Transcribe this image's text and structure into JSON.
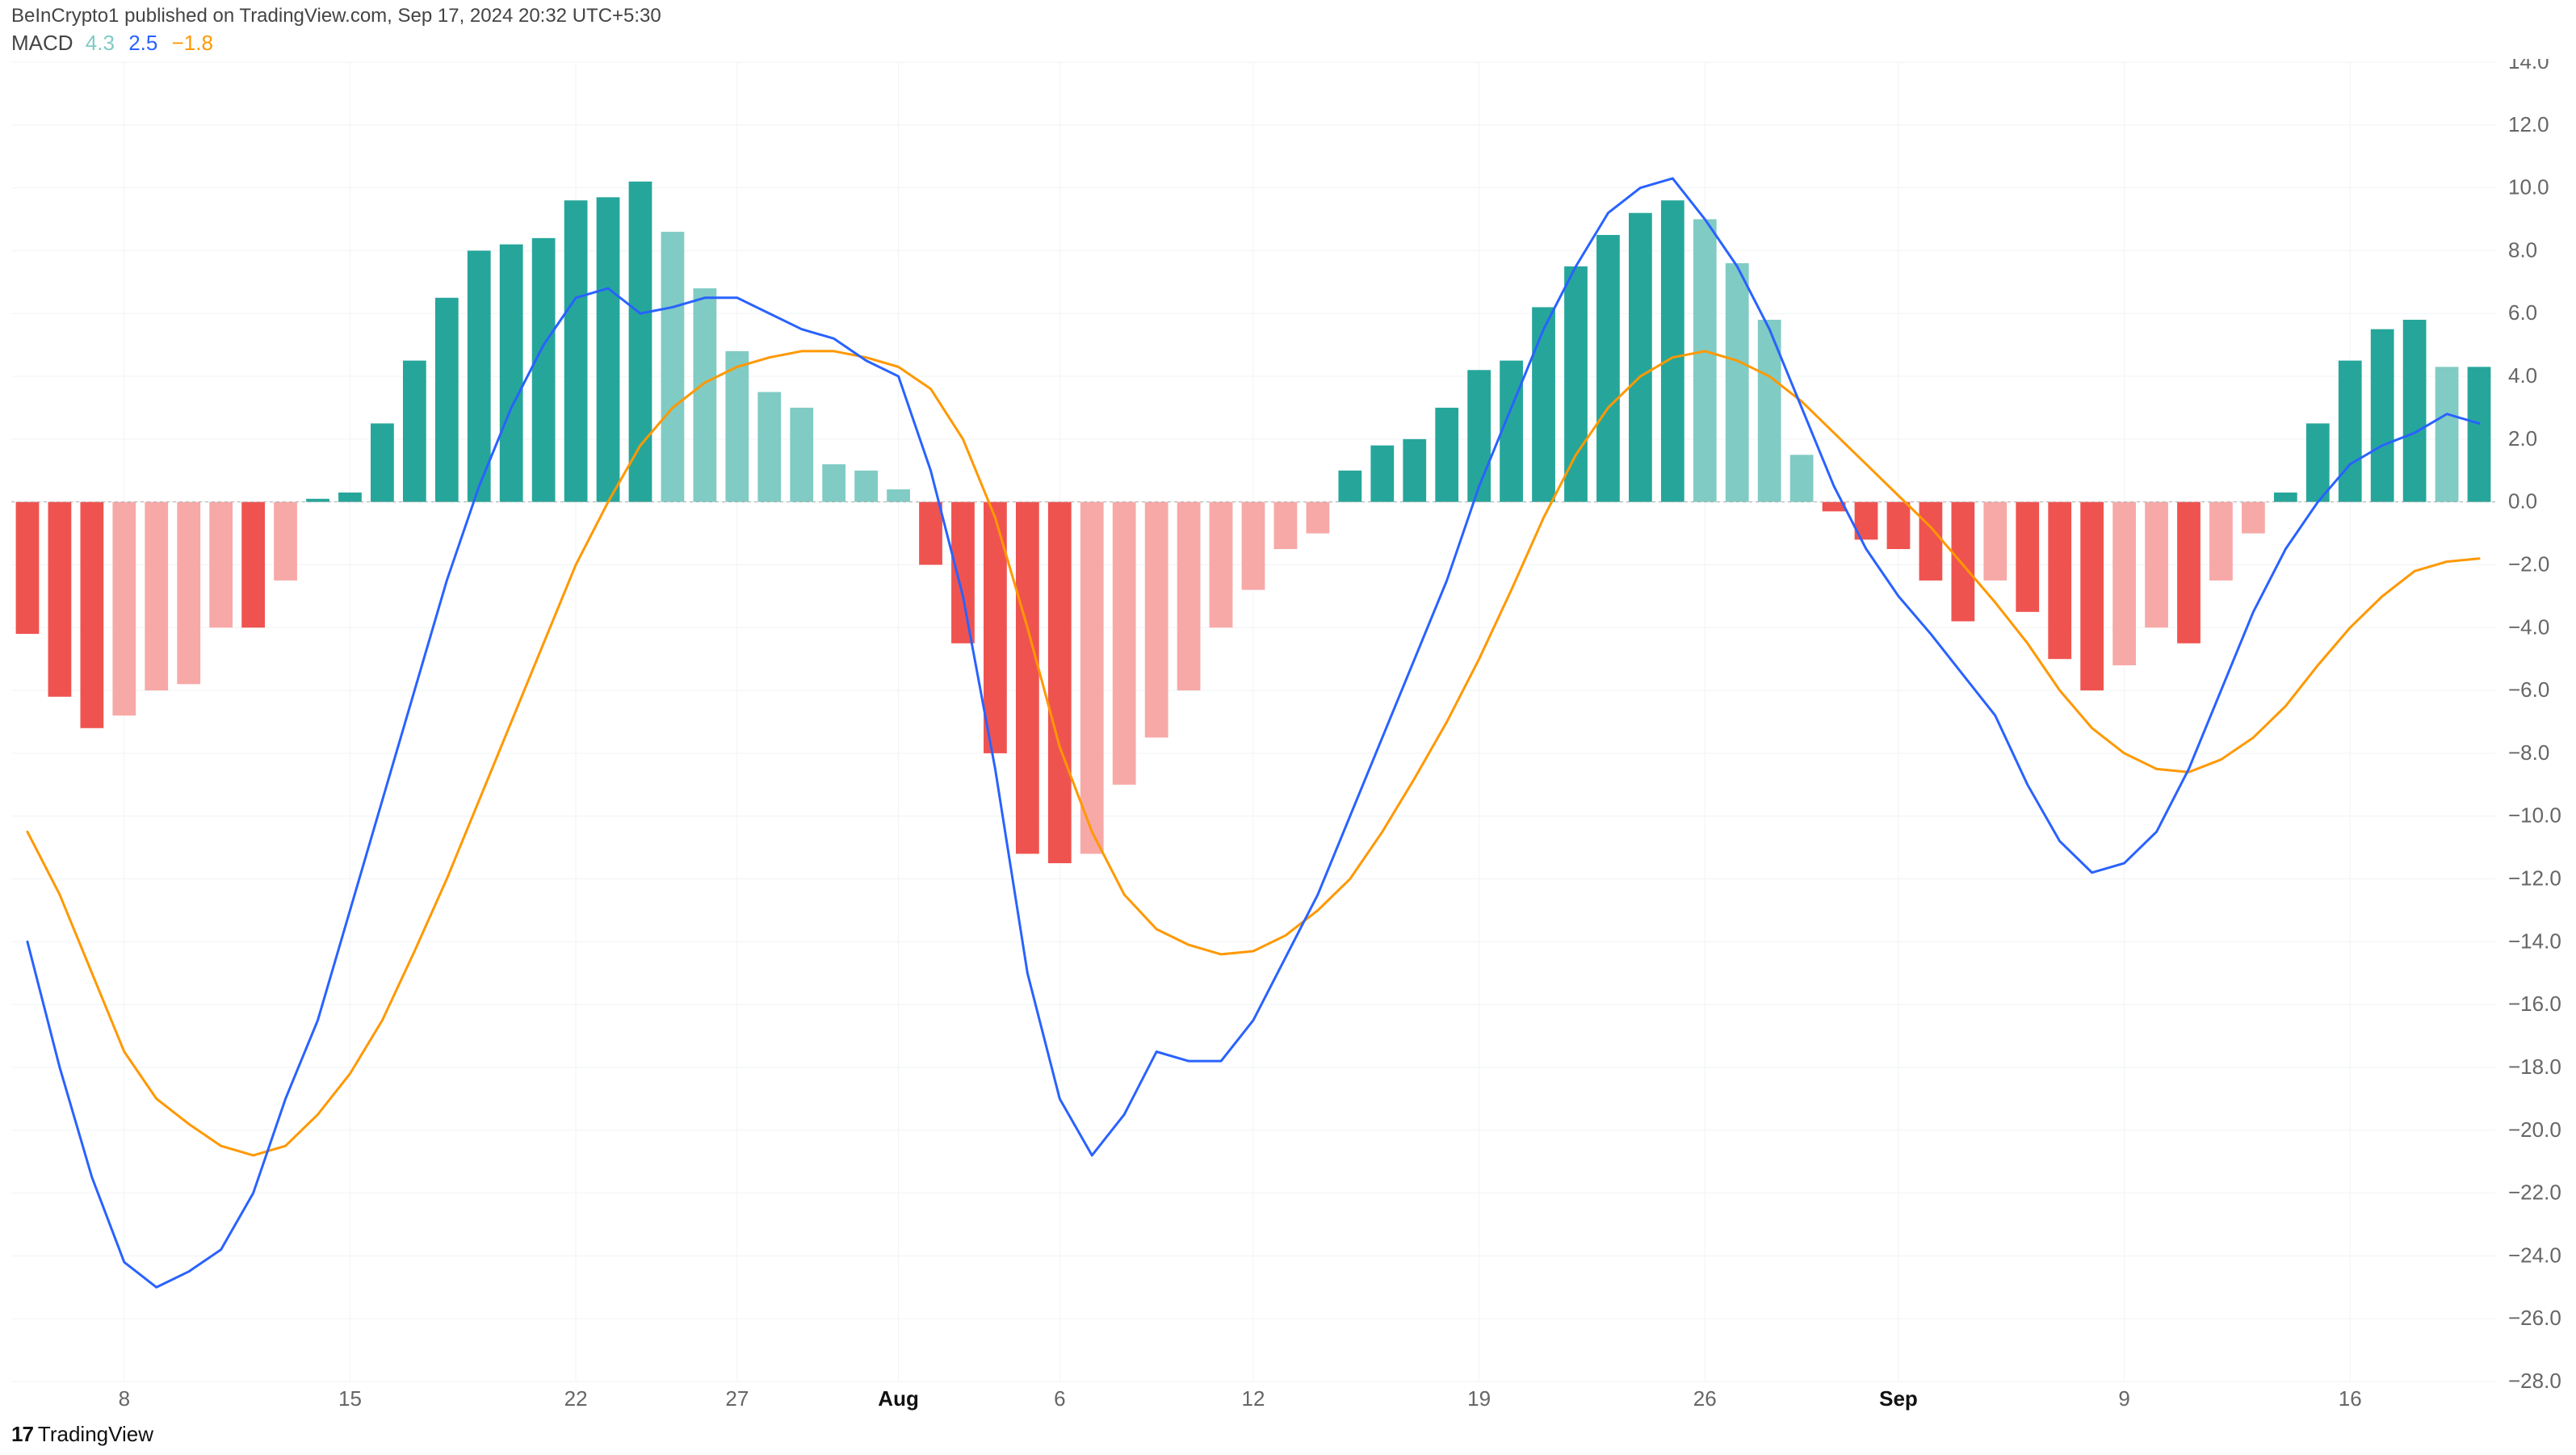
{
  "header": {
    "caption": "BeInCrypto1 published on TradingView.com, Sep 17, 2024 20:32 UTC+5:30"
  },
  "legend": {
    "label": "MACD",
    "hist_val": "4.3",
    "hist_color": "#80cbc4",
    "macd_val": "2.5",
    "macd_color": "#2962ff",
    "signal_val": "−1.8",
    "signal_color": "#ff9800"
  },
  "footer": {
    "brand": "TradingView"
  },
  "chart": {
    "type": "macd",
    "background_color": "#ffffff",
    "grid_color": "#f0f3f6",
    "zero_line_color": "#aaaaaa",
    "axis_text_color": "#666666",
    "axis_text_bold_color": "#111111",
    "axis_fontsize": 26,
    "y_axis_side": "right",
    "y_min": -28.0,
    "y_max": 14.0,
    "y_tick_step": 2.0,
    "macd_line": {
      "color": "#2962ff",
      "width": 3
    },
    "signal_line": {
      "color": "#ff9800",
      "width": 3
    },
    "histogram": {
      "bar_gap_ratio": 0.28,
      "colors": {
        "pos_strong": "#26a69a",
        "pos_weak": "#80cbc4",
        "neg_strong": "#ef5350",
        "neg_weak": "#f7a9a7"
      }
    },
    "x_ticks": [
      {
        "idx": 3,
        "label": "8",
        "bold": false
      },
      {
        "idx": 10,
        "label": "15",
        "bold": false
      },
      {
        "idx": 17,
        "label": "22",
        "bold": false
      },
      {
        "idx": 22,
        "label": "27",
        "bold": false
      },
      {
        "idx": 27,
        "label": "Aug",
        "bold": true
      },
      {
        "idx": 32,
        "label": "6",
        "bold": false
      },
      {
        "idx": 38,
        "label": "12",
        "bold": false
      },
      {
        "idx": 45,
        "label": "19",
        "bold": false
      },
      {
        "idx": 52,
        "label": "26",
        "bold": false
      },
      {
        "idx": 58,
        "label": "Sep",
        "bold": true
      },
      {
        "idx": 65,
        "label": "9",
        "bold": false
      },
      {
        "idx": 72,
        "label": "16",
        "bold": false
      }
    ],
    "points": [
      {
        "hist": -4.2,
        "macd": -14.0,
        "signal": -10.5
      },
      {
        "hist": -6.2,
        "macd": -18.0,
        "signal": -12.5
      },
      {
        "hist": -7.2,
        "macd": -21.5,
        "signal": -15.0
      },
      {
        "hist": -6.8,
        "macd": -24.2,
        "signal": -17.5
      },
      {
        "hist": -6.0,
        "macd": -25.0,
        "signal": -19.0
      },
      {
        "hist": -5.8,
        "macd": -24.5,
        "signal": -19.8
      },
      {
        "hist": -4.0,
        "macd": -23.8,
        "signal": -20.5
      },
      {
        "hist": -4.0,
        "macd": -22.0,
        "signal": -20.8
      },
      {
        "hist": -2.5,
        "macd": -19.0,
        "signal": -20.5
      },
      {
        "hist": 0.1,
        "macd": -16.5,
        "signal": -19.5
      },
      {
        "hist": 0.3,
        "macd": -13.0,
        "signal": -18.2
      },
      {
        "hist": 2.5,
        "macd": -9.5,
        "signal": -16.5
      },
      {
        "hist": 4.5,
        "macd": -6.0,
        "signal": -14.3
      },
      {
        "hist": 6.5,
        "macd": -2.5,
        "signal": -12.0
      },
      {
        "hist": 8.0,
        "macd": 0.5,
        "signal": -9.5
      },
      {
        "hist": 8.2,
        "macd": 3.0,
        "signal": -7.0
      },
      {
        "hist": 8.4,
        "macd": 5.0,
        "signal": -4.5
      },
      {
        "hist": 9.6,
        "macd": 6.5,
        "signal": -2.0
      },
      {
        "hist": 9.7,
        "macd": 6.8,
        "signal": 0.0
      },
      {
        "hist": 10.2,
        "macd": 6.0,
        "signal": 1.8
      },
      {
        "hist": 8.6,
        "macd": 6.2,
        "signal": 3.0
      },
      {
        "hist": 6.8,
        "macd": 6.5,
        "signal": 3.8
      },
      {
        "hist": 4.8,
        "macd": 6.5,
        "signal": 4.3
      },
      {
        "hist": 3.5,
        "macd": 6.0,
        "signal": 4.6
      },
      {
        "hist": 3.0,
        "macd": 5.5,
        "signal": 4.8
      },
      {
        "hist": 1.2,
        "macd": 5.2,
        "signal": 4.8
      },
      {
        "hist": 1.0,
        "macd": 4.5,
        "signal": 4.6
      },
      {
        "hist": 0.4,
        "macd": 4.0,
        "signal": 4.3
      },
      {
        "hist": -2.0,
        "macd": 1.0,
        "signal": 3.6
      },
      {
        "hist": -4.5,
        "macd": -3.0,
        "signal": 2.0
      },
      {
        "hist": -8.0,
        "macd": -8.5,
        "signal": -0.5
      },
      {
        "hist": -11.2,
        "macd": -15.0,
        "signal": -4.0
      },
      {
        "hist": -11.5,
        "macd": -19.0,
        "signal": -7.8
      },
      {
        "hist": -11.2,
        "macd": -20.8,
        "signal": -10.5
      },
      {
        "hist": -9.0,
        "macd": -19.5,
        "signal": -12.5
      },
      {
        "hist": -7.5,
        "macd": -17.5,
        "signal": -13.6
      },
      {
        "hist": -6.0,
        "macd": -17.8,
        "signal": -14.1
      },
      {
        "hist": -4.0,
        "macd": -17.8,
        "signal": -14.4
      },
      {
        "hist": -2.8,
        "macd": -16.5,
        "signal": -14.3
      },
      {
        "hist": -1.5,
        "macd": -14.5,
        "signal": -13.8
      },
      {
        "hist": -1.0,
        "macd": -12.5,
        "signal": -13.0
      },
      {
        "hist": 1.0,
        "macd": -10.0,
        "signal": -12.0
      },
      {
        "hist": 1.8,
        "macd": -7.5,
        "signal": -10.5
      },
      {
        "hist": 2.0,
        "macd": -5.0,
        "signal": -8.8
      },
      {
        "hist": 3.0,
        "macd": -2.5,
        "signal": -7.0
      },
      {
        "hist": 4.2,
        "macd": 0.5,
        "signal": -5.0
      },
      {
        "hist": 4.5,
        "macd": 3.0,
        "signal": -2.8
      },
      {
        "hist": 6.2,
        "macd": 5.5,
        "signal": -0.5
      },
      {
        "hist": 7.5,
        "macd": 7.5,
        "signal": 1.5
      },
      {
        "hist": 8.5,
        "macd": 9.2,
        "signal": 3.0
      },
      {
        "hist": 9.2,
        "macd": 10.0,
        "signal": 4.0
      },
      {
        "hist": 9.6,
        "macd": 10.3,
        "signal": 4.6
      },
      {
        "hist": 9.0,
        "macd": 9.0,
        "signal": 4.8
      },
      {
        "hist": 7.6,
        "macd": 7.5,
        "signal": 4.5
      },
      {
        "hist": 5.8,
        "macd": 5.5,
        "signal": 4.0
      },
      {
        "hist": 1.5,
        "macd": 3.0,
        "signal": 3.2
      },
      {
        "hist": -0.3,
        "macd": 0.5,
        "signal": 2.2
      },
      {
        "hist": -1.2,
        "macd": -1.5,
        "signal": 1.2
      },
      {
        "hist": -1.5,
        "macd": -3.0,
        "signal": 0.2
      },
      {
        "hist": -2.5,
        "macd": -4.2,
        "signal": -0.8
      },
      {
        "hist": -3.8,
        "macd": -5.5,
        "signal": -2.0
      },
      {
        "hist": -2.5,
        "macd": -6.8,
        "signal": -3.2
      },
      {
        "hist": -3.5,
        "macd": -9.0,
        "signal": -4.5
      },
      {
        "hist": -5.0,
        "macd": -10.8,
        "signal": -6.0
      },
      {
        "hist": -6.0,
        "macd": -11.8,
        "signal": -7.2
      },
      {
        "hist": -5.2,
        "macd": -11.5,
        "signal": -8.0
      },
      {
        "hist": -4.0,
        "macd": -10.5,
        "signal": -8.5
      },
      {
        "hist": -4.5,
        "macd": -8.5,
        "signal": -8.6
      },
      {
        "hist": -2.5,
        "macd": -6.0,
        "signal": -8.2
      },
      {
        "hist": -1.0,
        "macd": -3.5,
        "signal": -7.5
      },
      {
        "hist": 0.3,
        "macd": -1.5,
        "signal": -6.5
      },
      {
        "hist": 2.5,
        "macd": 0.0,
        "signal": -5.2
      },
      {
        "hist": 4.5,
        "macd": 1.2,
        "signal": -4.0
      },
      {
        "hist": 5.5,
        "macd": 1.8,
        "signal": -3.0
      },
      {
        "hist": 5.8,
        "macd": 2.2,
        "signal": -2.2
      },
      {
        "hist": 4.3,
        "macd": 2.8,
        "signal": -1.9
      },
      {
        "hist": 4.3,
        "macd": 2.5,
        "signal": -1.8
      }
    ]
  }
}
